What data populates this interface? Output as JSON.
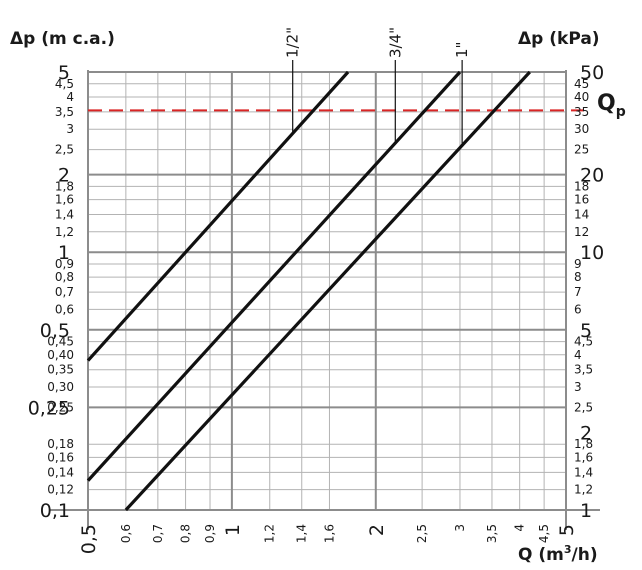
{
  "chart_data": {
    "type": "line",
    "scale": "log-log",
    "title": "",
    "xlabel": "Q (m",
    "xlabel_sup": "3",
    "xlabel_end": "/h)",
    "ylabel_left": "Δp (m c.a.)",
    "ylabel_right": "Δp (kPa)",
    "xlim": [
      0.5,
      5
    ],
    "ylim": [
      0.1,
      5
    ],
    "grid": true,
    "qp_label": "Q",
    "qp_sub": "p",
    "qp_value_kpa": 35.5,
    "qp_color": "#d92525",
    "series": [
      {
        "name": "1/2\"",
        "x": [
          0.5,
          1.75
        ],
        "y": [
          0.38,
          5.0
        ],
        "label_x": 0.5
      },
      {
        "name": "3/4\"",
        "x": [
          0.5,
          3.0
        ],
        "y": [
          0.13,
          5.0
        ],
        "label_x": 0.5
      },
      {
        "name": "1\"",
        "x": [
          0.6,
          4.2
        ],
        "y": [
          0.1,
          5.0
        ],
        "label_x": 0.5
      }
    ],
    "x_ticks_major": [
      {
        "v": 0.5,
        "label": "0,5"
      },
      {
        "v": 1,
        "label": "1"
      },
      {
        "v": 2,
        "label": "2"
      },
      {
        "v": 5,
        "label": "5"
      }
    ],
    "x_ticks_minor": [
      {
        "v": 0.6,
        "label": "0,6"
      },
      {
        "v": 0.7,
        "label": "0,7"
      },
      {
        "v": 0.8,
        "label": "0,8"
      },
      {
        "v": 0.9,
        "label": "0,9"
      },
      {
        "v": 1.2,
        "label": "1,2"
      },
      {
        "v": 1.4,
        "label": "1,4"
      },
      {
        "v": 1.6,
        "label": "1,6"
      },
      {
        "v": 2.5,
        "label": "2,5"
      },
      {
        "v": 3,
        "label": "3"
      },
      {
        "v": 3.5,
        "label": "3,5"
      },
      {
        "v": 4,
        "label": "4"
      },
      {
        "v": 4.5,
        "label": "4,5"
      }
    ],
    "y_left_major": [
      {
        "v": 5,
        "label": "5"
      },
      {
        "v": 2,
        "label": "2"
      },
      {
        "v": 1,
        "label": "1"
      },
      {
        "v": 0.5,
        "label": "0,5"
      },
      {
        "v": 0.25,
        "label": "0,25"
      },
      {
        "v": 0.1,
        "label": "0,1"
      }
    ],
    "y_left_minor": [
      {
        "v": 4.5,
        "label": "4,5"
      },
      {
        "v": 4,
        "label": "4"
      },
      {
        "v": 3.5,
        "label": "3,5"
      },
      {
        "v": 3,
        "label": "3"
      },
      {
        "v": 2.5,
        "label": "2,5"
      },
      {
        "v": 1.8,
        "label": "1,8"
      },
      {
        "v": 1.6,
        "label": "1,6"
      },
      {
        "v": 1.4,
        "label": "1,4"
      },
      {
        "v": 1.2,
        "label": "1,2"
      },
      {
        "v": 0.9,
        "label": "0,9"
      },
      {
        "v": 0.8,
        "label": "0,8"
      },
      {
        "v": 0.7,
        "label": "0,7"
      },
      {
        "v": 0.6,
        "label": "0,6"
      },
      {
        "v": 0.45,
        "label": "0,45"
      },
      {
        "v": 0.4,
        "label": "0,40"
      },
      {
        "v": 0.35,
        "label": "0,35"
      },
      {
        "v": 0.3,
        "label": "0,30"
      },
      {
        "v": 0.25,
        "label": "0,25"
      },
      {
        "v": 0.18,
        "label": "0,18"
      },
      {
        "v": 0.16,
        "label": "0,16"
      },
      {
        "v": 0.14,
        "label": "0,14"
      },
      {
        "v": 0.12,
        "label": "0,12"
      }
    ],
    "y_right_major": [
      {
        "v": 50,
        "label": "50"
      },
      {
        "v": 20,
        "label": "20"
      },
      {
        "v": 10,
        "label": "10"
      },
      {
        "v": 5,
        "label": "5"
      },
      {
        "v": 2,
        "label": "2"
      },
      {
        "v": 1,
        "label": "1"
      }
    ],
    "y_right_minor": [
      {
        "v": 45,
        "label": "45"
      },
      {
        "v": 40,
        "label": "40"
      },
      {
        "v": 35,
        "label": "35"
      },
      {
        "v": 30,
        "label": "30"
      },
      {
        "v": 25,
        "label": "25"
      },
      {
        "v": 18,
        "label": "18"
      },
      {
        "v": 16,
        "label": "16"
      },
      {
        "v": 14,
        "label": "14"
      },
      {
        "v": 12,
        "label": "12"
      },
      {
        "v": 9,
        "label": "9"
      },
      {
        "v": 8,
        "label": "8"
      },
      {
        "v": 7,
        "label": "7"
      },
      {
        "v": 6,
        "label": "6"
      },
      {
        "v": 4.5,
        "label": "4,5"
      },
      {
        "v": 4,
        "label": "4"
      },
      {
        "v": 3.5,
        "label": "3,5"
      },
      {
        "v": 3,
        "label": "3"
      },
      {
        "v": 2.5,
        "label": "2,5"
      },
      {
        "v": 1.8,
        "label": "1,8"
      },
      {
        "v": 1.6,
        "label": "1,6"
      },
      {
        "v": 1.4,
        "label": "1,4"
      },
      {
        "v": 1.2,
        "label": "1,2"
      }
    ]
  }
}
